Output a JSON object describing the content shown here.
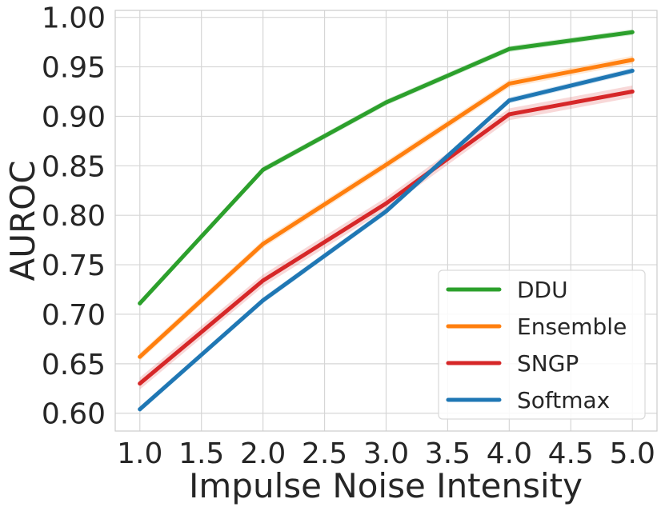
{
  "chart_data": {
    "type": "line",
    "xlabel": "Impulse Noise Intensity",
    "ylabel": "AUROC",
    "x": [
      1.0,
      2.0,
      3.0,
      4.0,
      5.0
    ],
    "xlim": [
      0.8,
      5.2
    ],
    "ylim": [
      0.582,
      1.007
    ],
    "xticks": [
      "1.0",
      "1.5",
      "2.0",
      "2.5",
      "3.0",
      "3.5",
      "4.0",
      "4.5",
      "5.0"
    ],
    "xtick_values": [
      1.0,
      1.5,
      2.0,
      2.5,
      3.0,
      3.5,
      4.0,
      4.5,
      5.0
    ],
    "yticks": [
      "0.60",
      "0.65",
      "0.70",
      "0.75",
      "0.80",
      "0.85",
      "0.90",
      "0.95",
      "1.00"
    ],
    "ytick_values": [
      0.6,
      0.65,
      0.7,
      0.75,
      0.8,
      0.85,
      0.9,
      0.95,
      1.0
    ],
    "grid": true,
    "legend_position": "bottom-right",
    "series": [
      {
        "name": "DDU",
        "color": "#2ca02c",
        "values": [
          0.711,
          0.846,
          0.914,
          0.968,
          0.985
        ],
        "band": 0.003
      },
      {
        "name": "Ensemble",
        "color": "#ff7f0e",
        "values": [
          0.657,
          0.771,
          0.851,
          0.933,
          0.957
        ],
        "band": 0.004
      },
      {
        "name": "SNGP",
        "color": "#d62728",
        "values": [
          0.63,
          0.734,
          0.812,
          0.902,
          0.925
        ],
        "band": 0.006
      },
      {
        "name": "Softmax",
        "color": "#1f77b4",
        "values": [
          0.604,
          0.714,
          0.804,
          0.916,
          0.946
        ],
        "band": 0.003
      }
    ]
  }
}
